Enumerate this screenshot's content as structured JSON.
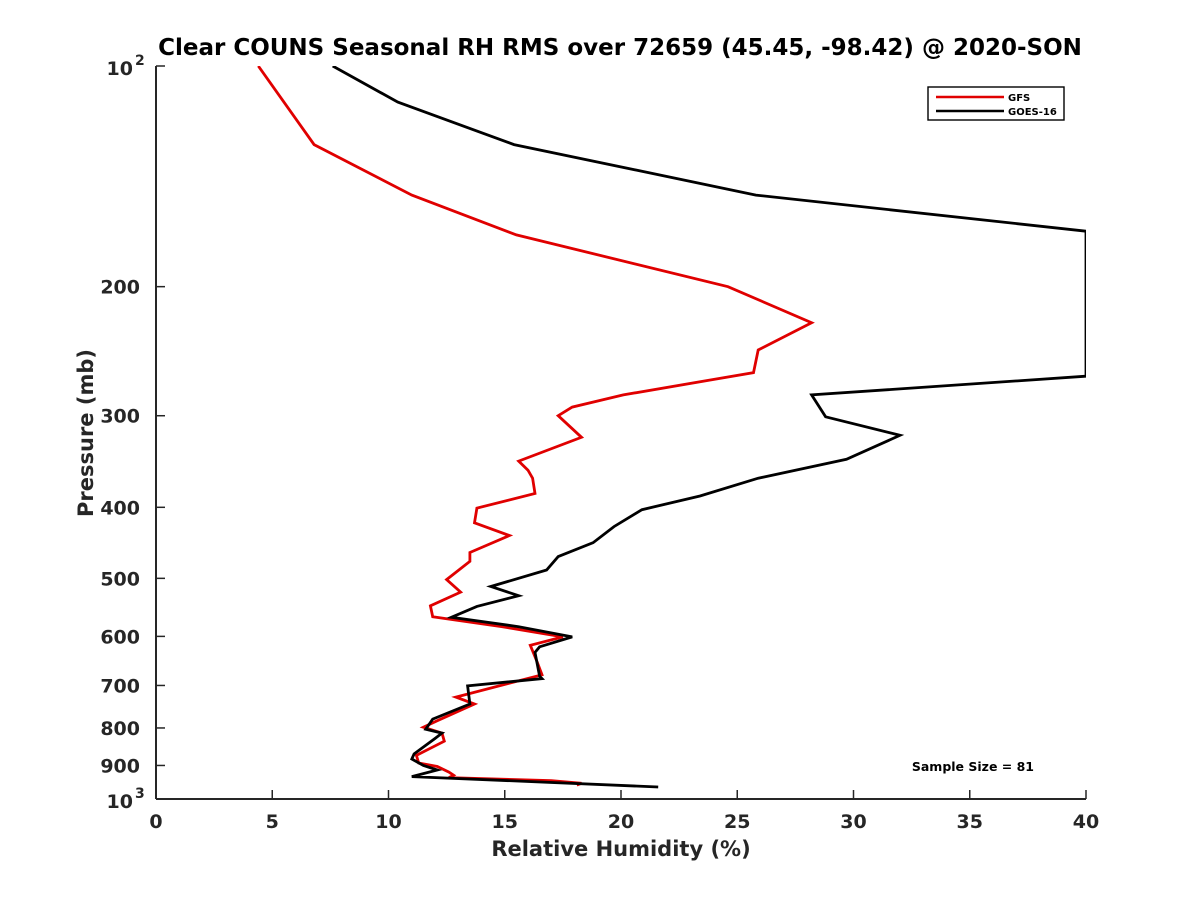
{
  "chart_data": {
    "type": "line",
    "title": "Clear COUNS Seasonal RH RMS over 72659 (45.45, -98.42) @ 2020-SON",
    "xlabel": "Relative Humidity (%)",
    "ylabel": "Pressure (mb)",
    "xlim": [
      0,
      40
    ],
    "ylim": [
      100,
      1000
    ],
    "yscale": "log",
    "y_reversed": true,
    "x_ticks": [
      "0",
      "5",
      "10",
      "15",
      "20",
      "25",
      "30",
      "35",
      "40"
    ],
    "y_ticks": [
      {
        "value": 100,
        "base": "10",
        "exp": "2"
      },
      {
        "value": 200,
        "label": "200"
      },
      {
        "value": 300,
        "label": "300"
      },
      {
        "value": 400,
        "label": "400"
      },
      {
        "value": 500,
        "label": "500"
      },
      {
        "value": 600,
        "label": "600"
      },
      {
        "value": 700,
        "label": "700"
      },
      {
        "value": 800,
        "label": "800"
      },
      {
        "value": 900,
        "label": "900"
      },
      {
        "value": 1000,
        "base": "10",
        "exp": "3"
      }
    ],
    "legend_position": "top-right",
    "annotation": "Sample Size = 81",
    "series": [
      {
        "name": "GFS",
        "color": "#e00000",
        "points": [
          [
            4.4,
            100
          ],
          [
            5.5,
            112
          ],
          [
            6.8,
            128
          ],
          [
            11.0,
            150
          ],
          [
            15.5,
            170
          ],
          [
            24.6,
            200
          ],
          [
            28.2,
            224
          ],
          [
            25.9,
            244
          ],
          [
            25.7,
            262
          ],
          [
            20.1,
            281
          ],
          [
            17.9,
            292
          ],
          [
            17.3,
            300
          ],
          [
            18.3,
            321
          ],
          [
            15.6,
            346
          ],
          [
            16.0,
            356
          ],
          [
            16.2,
            365
          ],
          [
            16.3,
            383
          ],
          [
            13.8,
            401
          ],
          [
            13.7,
            420
          ],
          [
            15.2,
            437
          ],
          [
            13.5,
            461
          ],
          [
            13.5,
            474
          ],
          [
            12.5,
            502
          ],
          [
            13.1,
            522
          ],
          [
            11.8,
            545
          ],
          [
            11.9,
            564
          ],
          [
            14.9,
            582
          ],
          [
            17.5,
            601
          ],
          [
            16.1,
            617
          ],
          [
            16.2,
            628
          ],
          [
            16.4,
            651
          ],
          [
            16.6,
            677
          ],
          [
            12.9,
            726
          ],
          [
            13.7,
            742
          ],
          [
            12.1,
            782
          ],
          [
            11.5,
            798
          ],
          [
            12.3,
            813
          ],
          [
            12.4,
            834
          ],
          [
            11.2,
            872
          ],
          [
            11.3,
            893
          ],
          [
            12.1,
            903
          ],
          [
            12.6,
            919
          ],
          [
            12.8,
            928
          ],
          [
            12.6,
            935
          ],
          [
            17.0,
            944
          ],
          [
            18.3,
            952
          ],
          [
            18.1,
            957
          ]
        ]
      },
      {
        "name": "GOES-16",
        "color": "#000000",
        "points": [
          [
            7.6,
            100
          ],
          [
            10.4,
            112
          ],
          [
            15.4,
            128
          ],
          [
            25.8,
            150
          ],
          [
            40.0,
            168
          ],
          [
            40.0,
            265
          ],
          [
            28.2,
            281
          ],
          [
            28.8,
            301
          ],
          [
            32.0,
            319
          ],
          [
            29.7,
            344
          ],
          [
            25.9,
            365
          ],
          [
            23.4,
            386
          ],
          [
            20.9,
            403
          ],
          [
            19.7,
            425
          ],
          [
            18.8,
            447
          ],
          [
            17.3,
            467
          ],
          [
            16.8,
            487
          ],
          [
            14.4,
            513
          ],
          [
            15.6,
            528
          ],
          [
            13.8,
            546
          ],
          [
            12.7,
            565
          ],
          [
            15.6,
            582
          ],
          [
            17.9,
            601
          ],
          [
            16.5,
            620
          ],
          [
            16.3,
            631
          ],
          [
            16.5,
            680
          ],
          [
            16.6,
            685
          ],
          [
            13.4,
            701
          ],
          [
            13.5,
            742
          ],
          [
            11.9,
            778
          ],
          [
            11.6,
            803
          ],
          [
            12.3,
            813
          ],
          [
            12.0,
            827
          ],
          [
            11.1,
            868
          ],
          [
            11.0,
            882
          ],
          [
            11.5,
            900
          ],
          [
            12.1,
            913
          ],
          [
            11.0,
            932
          ],
          [
            21.6,
            963
          ]
        ]
      }
    ]
  }
}
